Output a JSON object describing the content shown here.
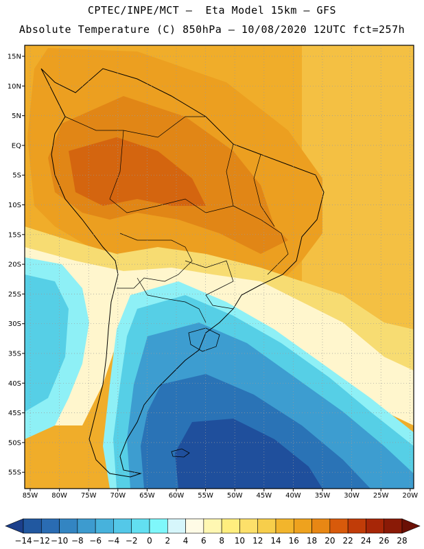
{
  "header": {
    "line1": "CPTEC/INPE/MCT –  Eta Model 15km – GFS",
    "line2": "Absolute Temperature (C) 850hPa – 10/08/2020 12UTC fct=257h"
  },
  "axes": {
    "lat_labels": [
      "15N",
      "10N",
      "5N",
      "EQ",
      "5S",
      "10S",
      "15S",
      "20S",
      "25S",
      "30S",
      "35S",
      "40S",
      "45S",
      "50S",
      "55S"
    ],
    "lon_labels": [
      "85W",
      "80W",
      "75W",
      "70W",
      "65W",
      "60W",
      "55W",
      "50W",
      "45W",
      "40W",
      "35W",
      "30W",
      "25W",
      "20W"
    ]
  },
  "colorbar": {
    "labels": [
      "-14",
      "-12",
      "-10",
      "-8",
      "-6",
      "-4",
      "-2",
      "0",
      "2",
      "4",
      "6",
      "8",
      "10",
      "12",
      "14",
      "16",
      "18",
      "20",
      "22",
      "24",
      "26",
      "28"
    ],
    "colors": [
      "#1b3f8b",
      "#2158a0",
      "#2a6cb3",
      "#3385c2",
      "#3d9bcf",
      "#47b2dc",
      "#54c8e8",
      "#62dff1",
      "#7ff7fb",
      "#d6f6fb",
      "#fffbe6",
      "#fff7b2",
      "#ffee7e",
      "#fde06a",
      "#f7ce4b",
      "#f2b52c",
      "#eea21e",
      "#e88714",
      "#d85a0b",
      "#c13c08",
      "#a72607",
      "#8a1a06",
      "#6b1005"
    ]
  },
  "map_colors": {
    "ocean_warm": "#f0ad2a",
    "ocean_far": "#f4c043",
    "amazon": "#e18616",
    "amazon_hot": "#d4650f",
    "cerrado": "#ec9f20",
    "yellow_band": "#f7dc72",
    "pale_band": "#fff6cd",
    "cold_1": "#8ef0f6",
    "cold_2": "#56cfe6",
    "cold_3": "#3d9dd0",
    "cold_4": "#2a73b6",
    "cold_5": "#1f4f9c"
  }
}
